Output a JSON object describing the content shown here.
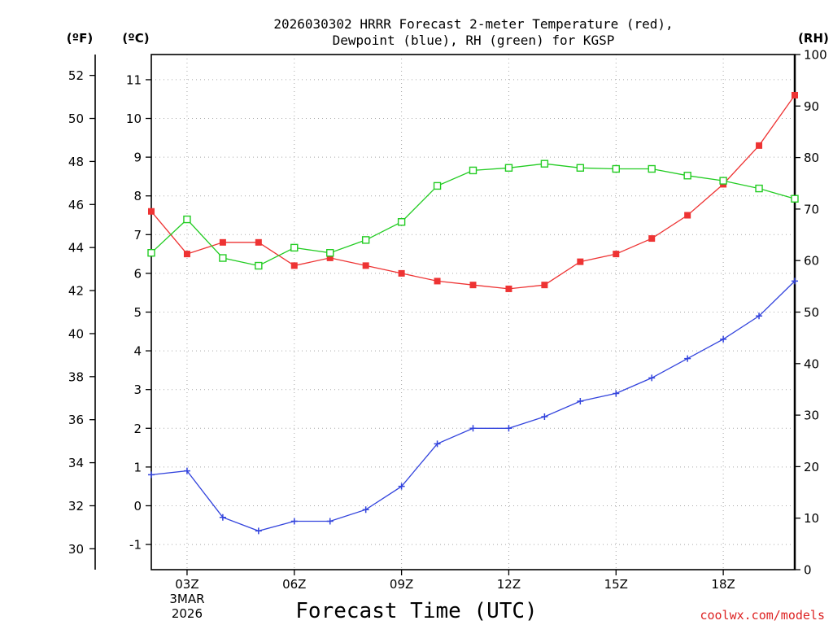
{
  "chart_data": {
    "type": "line",
    "title_lines": [
      "2026030302 HRRR Forecast 2-meter Temperature (red),",
      "Dewpoint (blue), RH (green) for KGSP"
    ],
    "xlabel": "Forecast Time (UTC)",
    "credit": "coolwx.com/models",
    "colors": {
      "temperature": "#ee3333",
      "dewpoint": "#3344dd",
      "rh": "#22cc22"
    },
    "x": [
      2,
      3,
      4,
      5,
      6,
      7,
      8,
      9,
      10,
      11,
      12,
      13,
      14,
      15,
      16,
      17,
      18,
      19,
      20
    ],
    "xlim": [
      2,
      20
    ],
    "x_ticks": [
      {
        "x": 3,
        "label": "03Z",
        "sub": [
          "3MAR",
          "2026"
        ]
      },
      {
        "x": 6,
        "label": "06Z"
      },
      {
        "x": 9,
        "label": "09Z"
      },
      {
        "x": 12,
        "label": "12Z"
      },
      {
        "x": 15,
        "label": "15Z"
      },
      {
        "x": 18,
        "label": "18Z"
      }
    ],
    "units": {
      "fahrenheit": "(ºF)",
      "celsius": "(ºC)",
      "rh": "(RH)"
    },
    "celsius_axis": {
      "ylim": [
        -1.65,
        11.65
      ],
      "ticks": [
        -1,
        0,
        1,
        2,
        3,
        4,
        5,
        6,
        7,
        8,
        9,
        10,
        11
      ]
    },
    "fahrenheit_ticks": [
      30,
      32,
      34,
      36,
      38,
      40,
      42,
      44,
      46,
      48,
      50,
      52
    ],
    "rh_axis": {
      "ylim": [
        0,
        100
      ],
      "ticks": [
        0,
        10,
        20,
        30,
        40,
        50,
        60,
        70,
        80,
        90,
        100
      ]
    },
    "series": [
      {
        "name": "Temperature",
        "key": "temperature",
        "axis": "celsius",
        "marker": "filled-square",
        "values": [
          7.6,
          6.5,
          6.8,
          6.8,
          6.2,
          6.4,
          6.2,
          6.0,
          5.8,
          5.7,
          5.6,
          5.7,
          6.3,
          6.5,
          6.9,
          7.5,
          8.3,
          9.3,
          10.6
        ]
      },
      {
        "name": "Dewpoint",
        "key": "dewpoint",
        "axis": "celsius",
        "marker": "plus",
        "values": [
          0.8,
          0.9,
          -0.3,
          -0.65,
          -0.4,
          -0.4,
          -0.1,
          0.5,
          1.6,
          2.0,
          2.0,
          2.3,
          2.7,
          2.9,
          3.3,
          3.8,
          4.3,
          4.9,
          5.8
        ]
      },
      {
        "name": "RH",
        "key": "rh",
        "axis": "rh",
        "marker": "open-square",
        "values": [
          61.5,
          68.0,
          60.5,
          59.0,
          62.5,
          61.5,
          64.0,
          67.5,
          74.5,
          77.5,
          78.0,
          78.8,
          78.0,
          77.8,
          77.8,
          76.5,
          75.5,
          74.0,
          72.0
        ]
      }
    ]
  }
}
